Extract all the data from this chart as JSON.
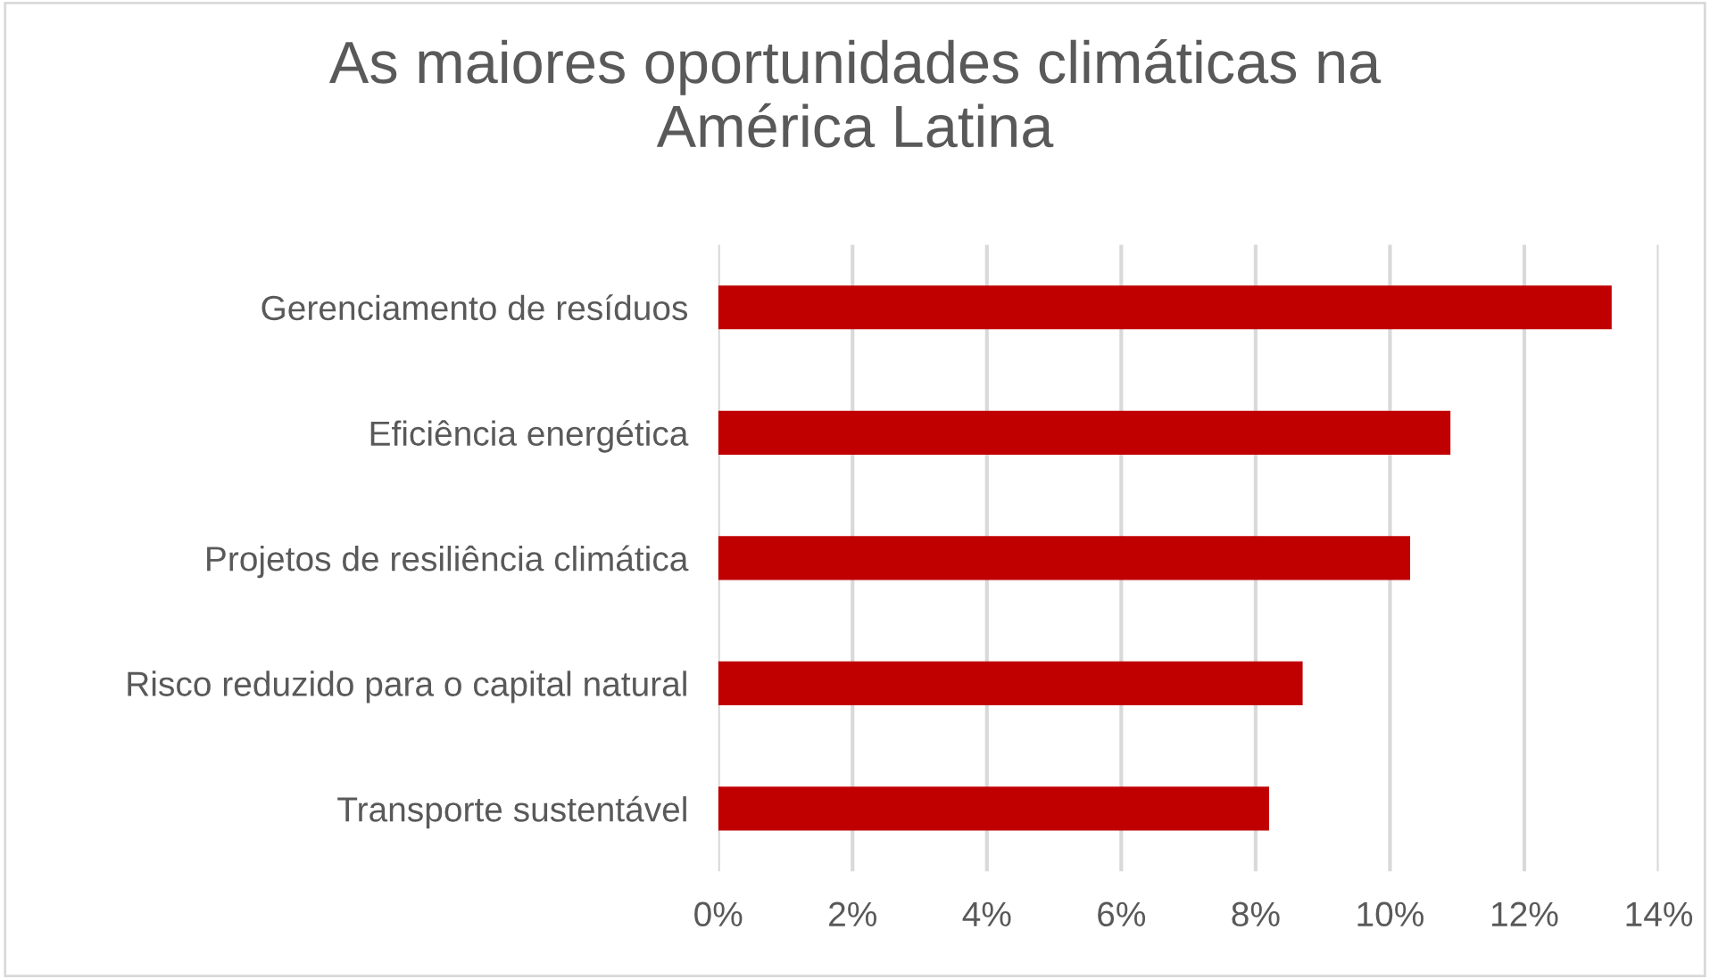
{
  "chart_data": {
    "type": "bar",
    "orientation": "horizontal",
    "title": "As maiores oportunidades climáticas na\nAmérica Latina",
    "categories": [
      "Gerenciamento de resíduos",
      "Eficiência energética",
      "Projetos de resiliência climática",
      "Risco reduzido para o capital natural",
      "Transporte sustentável"
    ],
    "values": [
      13.3,
      10.9,
      10.3,
      8.7,
      8.2
    ],
    "color": "#c00000",
    "xlim": [
      0,
      14
    ],
    "xticks": [
      {
        "value": 0,
        "label": "0%"
      },
      {
        "value": 2,
        "label": "2%"
      },
      {
        "value": 4,
        "label": "4%"
      },
      {
        "value": 6,
        "label": "6%"
      },
      {
        "value": 8,
        "label": "8%"
      },
      {
        "value": 10,
        "label": "10%"
      },
      {
        "value": 12,
        "label": "12%"
      },
      {
        "value": 14,
        "label": "14%"
      }
    ],
    "grid": "x",
    "legend": false
  }
}
